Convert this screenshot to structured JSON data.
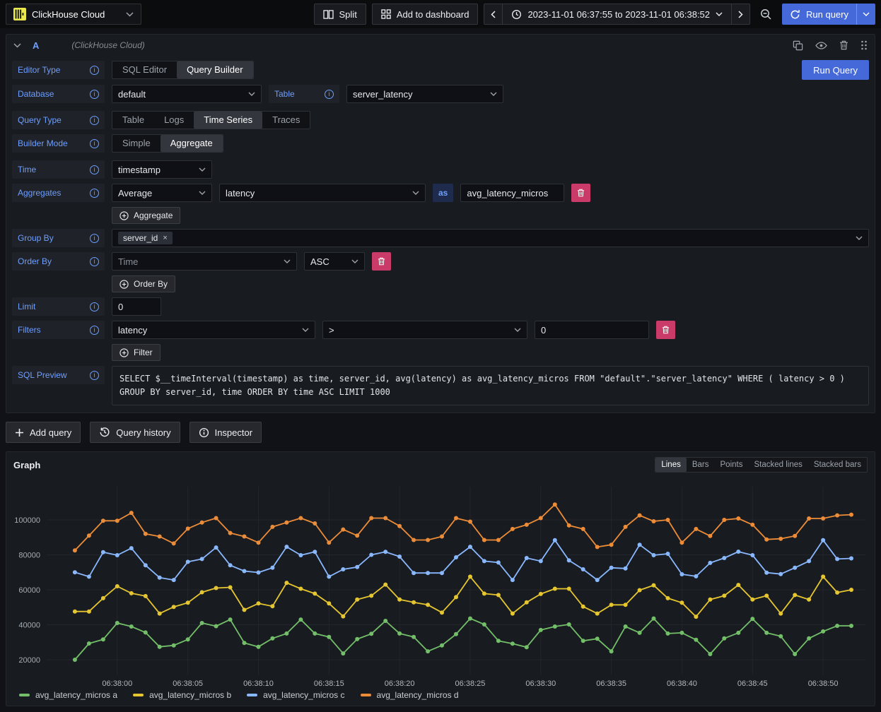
{
  "topbar": {
    "datasource_name": "ClickHouse Cloud",
    "split_label": "Split",
    "add_to_dashboard_label": "Add to dashboard",
    "time_range": "2023-11-01 06:37:55 to 2023-11-01 06:38:52",
    "run_query_label": "Run query"
  },
  "query_editor": {
    "ref_id": "A",
    "datasource_hint": "(ClickHouse Cloud)",
    "run_query_label": "Run Query",
    "rows": {
      "editor_type": {
        "label": "Editor Type",
        "options": [
          "SQL Editor",
          "Query Builder"
        ],
        "selected": "Query Builder"
      },
      "database": {
        "label": "Database",
        "value": "default"
      },
      "table": {
        "label": "Table",
        "value": "server_latency"
      },
      "query_type": {
        "label": "Query Type",
        "options": [
          "Table",
          "Logs",
          "Time Series",
          "Traces"
        ],
        "selected": "Time Series"
      },
      "builder_mode": {
        "label": "Builder Mode",
        "options": [
          "Simple",
          "Aggregate"
        ],
        "selected": "Aggregate"
      },
      "time": {
        "label": "Time",
        "value": "timestamp"
      },
      "aggregates": {
        "label": "Aggregates",
        "function": "Average",
        "column": "latency",
        "as_label": "as",
        "alias": "avg_latency_micros",
        "add_label": "Aggregate"
      },
      "group_by": {
        "label": "Group By",
        "tags": [
          "server_id"
        ]
      },
      "order_by": {
        "label": "Order By",
        "field": "Time",
        "direction": "ASC",
        "add_label": "Order By"
      },
      "limit": {
        "label": "Limit",
        "value": "0"
      },
      "filters": {
        "label": "Filters",
        "column": "latency",
        "operator": ">",
        "value": "0",
        "add_label": "Filter"
      },
      "sql_preview": {
        "label": "SQL Preview",
        "sql": "SELECT $__timeInterval(timestamp) as time, server_id, avg(latency) as avg_latency_micros FROM \"default\".\"server_latency\" WHERE ( latency > 0 ) GROUP BY server_id, time ORDER BY time ASC LIMIT 1000"
      }
    }
  },
  "actions": {
    "add_query_label": "Add query",
    "query_history_label": "Query history",
    "inspector_label": "Inspector"
  },
  "graph_panel": {
    "title": "Graph",
    "view_switch": {
      "options": [
        "Lines",
        "Bars",
        "Points",
        "Stacked lines",
        "Stacked bars"
      ],
      "selected": "Lines"
    }
  },
  "chart_data": {
    "type": "line",
    "title": "Graph",
    "x_start": "06:37:57",
    "x_interval_seconds": 1,
    "x_range": [
      "06:37:55",
      "06:38:53"
    ],
    "x_axis_ticks": [
      "06:38:00",
      "06:38:05",
      "06:38:10",
      "06:38:15",
      "06:38:20",
      "06:38:25",
      "06:38:30",
      "06:38:35",
      "06:38:40",
      "06:38:45",
      "06:38:50"
    ],
    "yticks": [
      20000,
      40000,
      60000,
      80000,
      100000
    ],
    "ylim": [
      11500,
      119000
    ],
    "grid": true,
    "legend_position": "bottom-left",
    "series": [
      {
        "name": "avg_latency_micros a",
        "color": "#73bf69",
        "values": [
          20000,
          29300,
          31600,
          41000,
          39000,
          35600,
          27400,
          28200,
          31600,
          41000,
          39200,
          43000,
          29600,
          27400,
          32200,
          35000,
          43000,
          35000,
          33000,
          23600,
          31800,
          34800,
          42200,
          35000,
          33000,
          24800,
          28200,
          34600,
          43600,
          40200,
          30800,
          29200,
          27200,
          37000,
          39000,
          40200,
          30800,
          32000,
          24800,
          39000,
          35400,
          43600,
          35000,
          35400,
          31400,
          23200,
          32200,
          35400,
          43400,
          35400,
          33400,
          23200,
          32200,
          36200,
          39400,
          39400
        ]
      },
      {
        "name": "avg_latency_micros b",
        "color": "#e6c630",
        "values": [
          47600,
          47600,
          55200,
          62000,
          58000,
          56400,
          46400,
          50200,
          52600,
          58600,
          61000,
          61400,
          48500,
          52200,
          50600,
          64000,
          60600,
          57800,
          52200,
          44800,
          54400,
          56600,
          63000,
          54400,
          52800,
          51400,
          47000,
          55800,
          67500,
          57800,
          57000,
          46400,
          52800,
          57600,
          60600,
          60600,
          50400,
          46400,
          51400,
          51400,
          59800,
          62600,
          55200,
          52600,
          44600,
          54400,
          56600,
          62800,
          54400,
          56600,
          46400,
          57000,
          54400,
          67500,
          58400,
          60000
        ]
      },
      {
        "name": "avg_latency_micros c",
        "color": "#8ab8ff",
        "values": [
          70000,
          67500,
          81500,
          79800,
          83800,
          74000,
          67000,
          65600,
          76000,
          77600,
          84200,
          74000,
          70700,
          69900,
          72600,
          84600,
          79800,
          81700,
          67500,
          71700,
          73000,
          80000,
          81700,
          79000,
          69600,
          69600,
          69600,
          78600,
          84600,
          76400,
          75600,
          65600,
          78200,
          76400,
          88400,
          76800,
          71700,
          65600,
          72600,
          72200,
          85800,
          79800,
          80600,
          68900,
          67700,
          75400,
          78200,
          81800,
          79800,
          69800,
          69000,
          72600,
          76400,
          88400,
          77600,
          78000
        ]
      },
      {
        "name": "avg_latency_micros d",
        "color": "#ed8c38",
        "values": [
          82500,
          91000,
          99500,
          99500,
          104000,
          92000,
          90500,
          86500,
          95000,
          98500,
          101000,
          92500,
          90500,
          87000,
          96000,
          98500,
          101000,
          98000,
          87000,
          94500,
          91000,
          101000,
          101000,
          96500,
          88500,
          88500,
          90500,
          101000,
          99000,
          88500,
          88500,
          94800,
          97200,
          101000,
          108800,
          96800,
          94800,
          84500,
          85800,
          96000,
          102600,
          99200,
          100000,
          87000,
          94800,
          90800,
          100000,
          100800,
          97200,
          88800,
          89200,
          90800,
          100800,
          100800,
          102600,
          103000
        ]
      }
    ]
  }
}
